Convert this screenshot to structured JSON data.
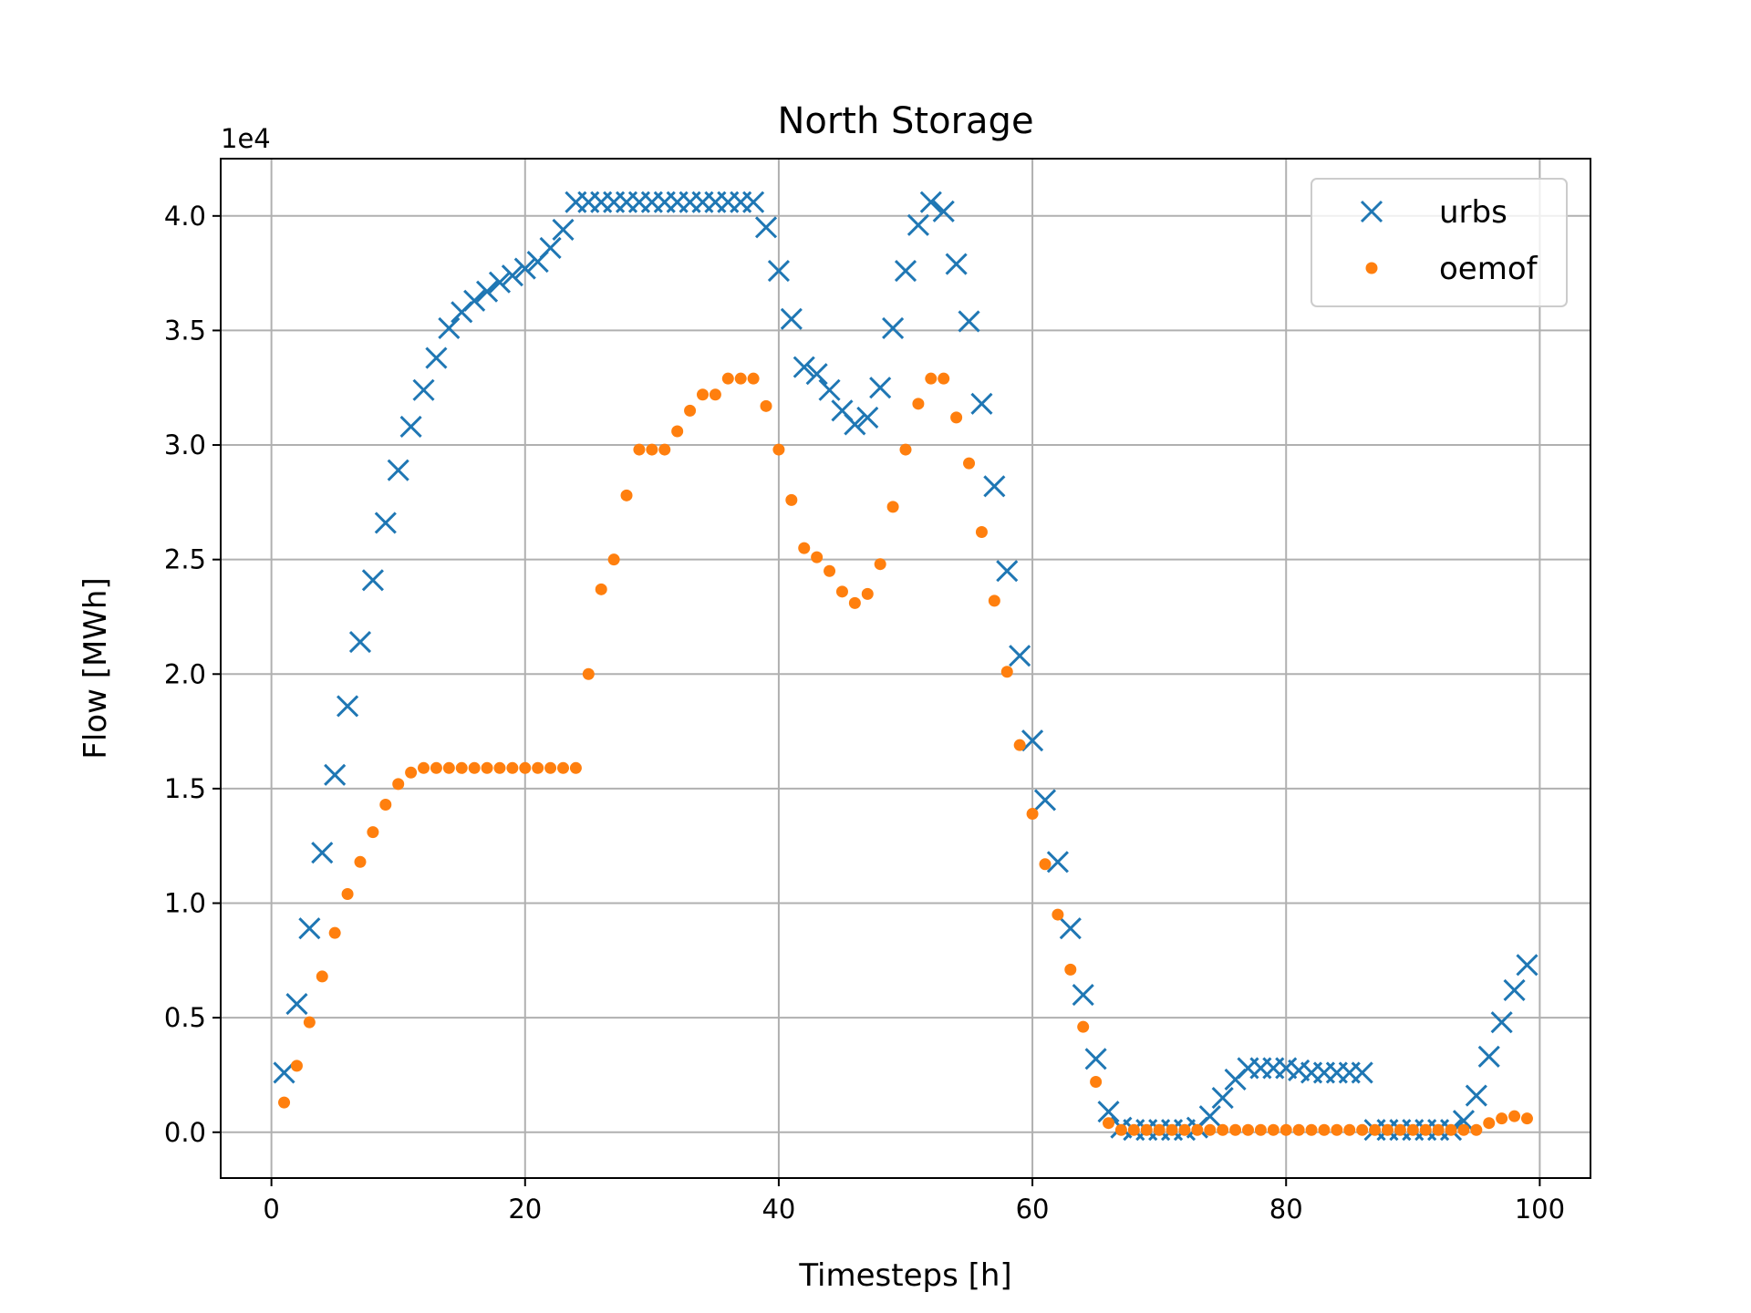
{
  "chart_data": {
    "type": "scatter",
    "title": "North Storage",
    "xlabel": "Timesteps [h]",
    "ylabel": "Flow [MWh]",
    "y_offset_label": "1e4",
    "xlim": [
      -4,
      104
    ],
    "ylim": [
      -0.2,
      4.25
    ],
    "x_ticks": [
      0,
      20,
      40,
      60,
      80,
      100
    ],
    "x_tick_labels": [
      "0",
      "20",
      "40",
      "60",
      "80",
      "100"
    ],
    "y_ticks": [
      0.0,
      0.5,
      1.0,
      1.5,
      2.0,
      2.5,
      3.0,
      3.5,
      4.0
    ],
    "y_tick_labels": [
      "0.0",
      "0.5",
      "1.0",
      "1.5",
      "2.0",
      "2.5",
      "3.0",
      "3.5",
      "4.0"
    ],
    "grid": true,
    "legend_position": "top-right",
    "x": [
      1,
      2,
      3,
      4,
      5,
      6,
      7,
      8,
      9,
      10,
      11,
      12,
      13,
      14,
      15,
      16,
      17,
      18,
      19,
      20,
      21,
      22,
      23,
      24,
      25,
      26,
      27,
      28,
      29,
      30,
      31,
      32,
      33,
      34,
      35,
      36,
      37,
      38,
      39,
      40,
      41,
      42,
      43,
      44,
      45,
      46,
      47,
      48,
      49,
      50,
      51,
      52,
      53,
      54,
      55,
      56,
      57,
      58,
      59,
      60,
      61,
      62,
      63,
      64,
      65,
      66,
      67,
      68,
      69,
      70,
      71,
      72,
      73,
      74,
      75,
      76,
      77,
      78,
      79,
      80,
      81,
      82,
      83,
      84,
      85,
      86,
      87,
      88,
      89,
      90,
      91,
      92,
      93,
      94,
      95,
      96,
      97,
      98,
      99
    ],
    "series": [
      {
        "name": "urbs",
        "marker": "x",
        "color": "#1f77b4",
        "values": [
          0.26,
          0.56,
          0.89,
          1.22,
          1.56,
          1.86,
          2.14,
          2.41,
          2.66,
          2.89,
          3.08,
          3.24,
          3.38,
          3.51,
          3.58,
          3.63,
          3.67,
          3.71,
          3.74,
          3.77,
          3.8,
          3.86,
          3.94,
          4.06,
          4.06,
          4.06,
          4.06,
          4.06,
          4.06,
          4.06,
          4.06,
          4.06,
          4.06,
          4.06,
          4.06,
          4.06,
          4.06,
          4.06,
          3.95,
          3.76,
          3.55,
          3.34,
          3.31,
          3.24,
          3.15,
          3.09,
          3.12,
          3.25,
          3.51,
          3.76,
          3.96,
          4.06,
          4.02,
          3.79,
          3.54,
          3.18,
          2.82,
          2.45,
          2.08,
          1.71,
          1.45,
          1.18,
          0.89,
          0.6,
          0.32,
          0.09,
          0.02,
          0.01,
          0.01,
          0.01,
          0.01,
          0.01,
          0.02,
          0.07,
          0.15,
          0.23,
          0.28,
          0.28,
          0.28,
          0.28,
          0.27,
          0.26,
          0.26,
          0.26,
          0.26,
          0.26,
          0.01,
          0.01,
          0.01,
          0.01,
          0.01,
          0.01,
          0.01,
          0.05,
          0.16,
          0.33,
          0.48,
          0.62,
          0.73
        ]
      },
      {
        "name": "oemof",
        "marker": "dot",
        "color": "#ff7f0e",
        "values": [
          0.13,
          0.29,
          0.48,
          0.68,
          0.87,
          1.04,
          1.18,
          1.31,
          1.43,
          1.52,
          1.57,
          1.59,
          1.59,
          1.59,
          1.59,
          1.59,
          1.59,
          1.59,
          1.59,
          1.59,
          1.59,
          1.59,
          1.59,
          1.59,
          2.0,
          2.37,
          2.5,
          2.78,
          2.98,
          2.98,
          2.98,
          3.06,
          3.15,
          3.22,
          3.22,
          3.29,
          3.29,
          3.29,
          3.17,
          2.98,
          2.76,
          2.55,
          2.51,
          2.45,
          2.36,
          2.31,
          2.35,
          2.48,
          2.73,
          2.98,
          3.18,
          3.29,
          3.29,
          3.12,
          2.92,
          2.62,
          2.32,
          2.01,
          1.69,
          1.39,
          1.17,
          0.95,
          0.71,
          0.46,
          0.22,
          0.04,
          0.01,
          0.01,
          0.01,
          0.01,
          0.01,
          0.01,
          0.01,
          0.01,
          0.01,
          0.01,
          0.01,
          0.01,
          0.01,
          0.01,
          0.01,
          0.01,
          0.01,
          0.01,
          0.01,
          0.01,
          0.01,
          0.01,
          0.01,
          0.01,
          0.01,
          0.01,
          0.01,
          0.01,
          0.01,
          0.04,
          0.06,
          0.07,
          0.06
        ]
      }
    ]
  }
}
